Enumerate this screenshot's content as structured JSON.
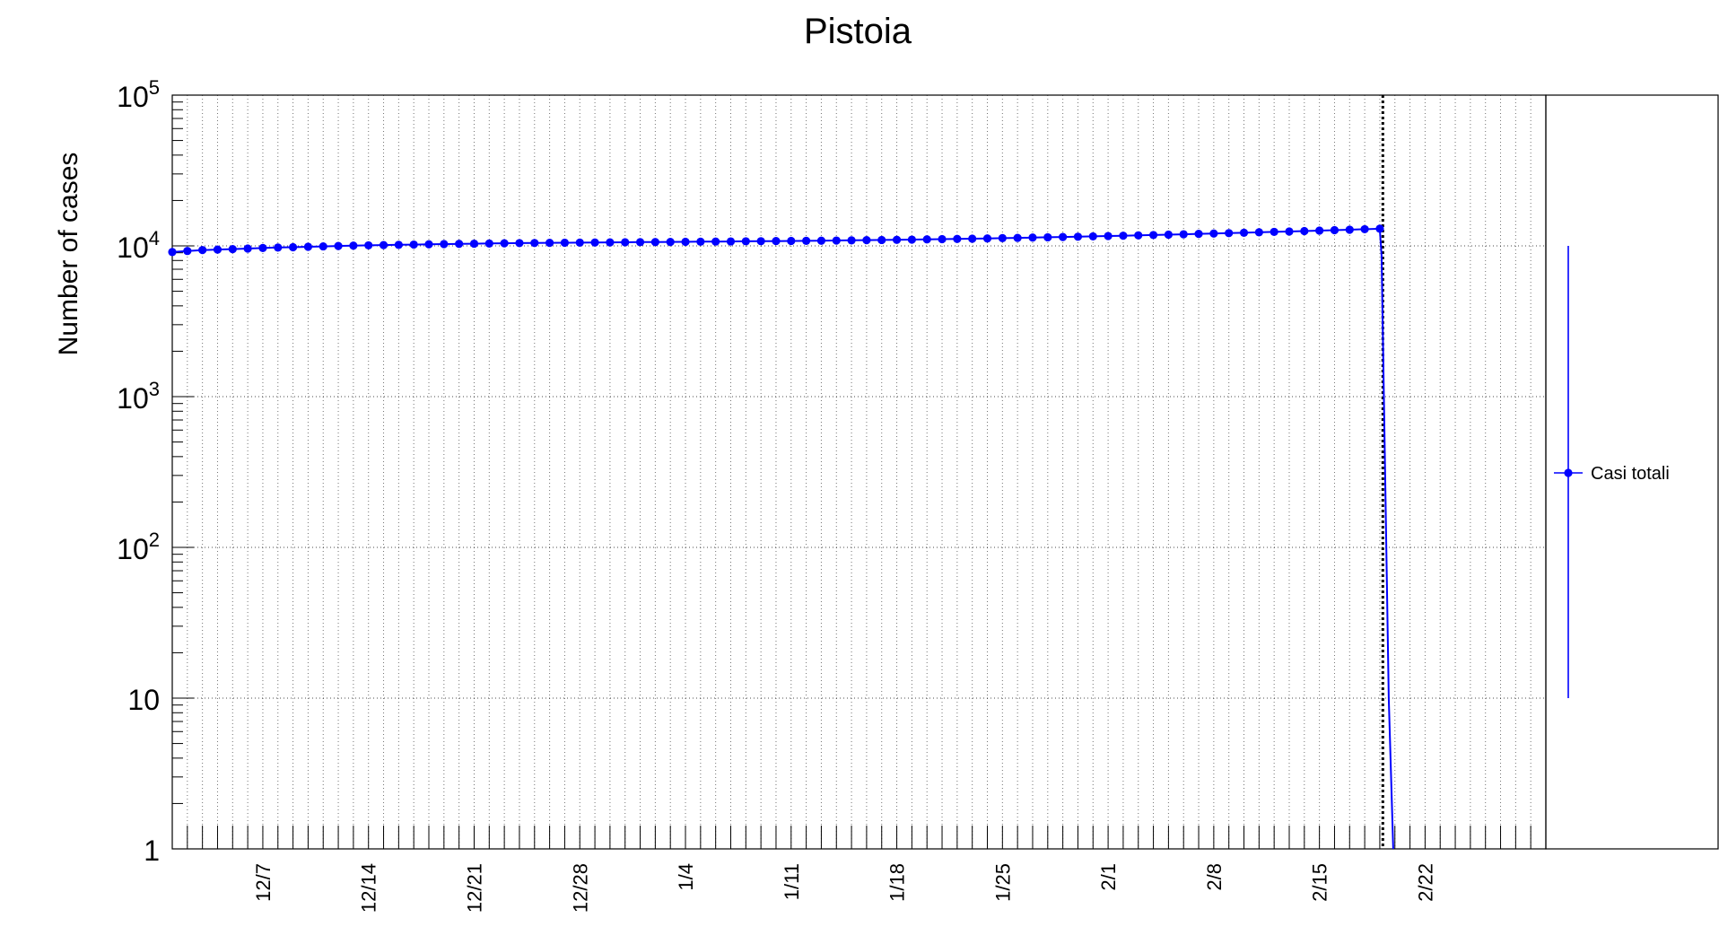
{
  "chart_data": {
    "type": "line",
    "title": "Pistoia",
    "xlabel": "",
    "ylabel": "Number of cases",
    "y_scale": "log",
    "ylim": [
      1,
      100000
    ],
    "xlim": [
      "2020-12-01",
      "2021-03-02"
    ],
    "grid": true,
    "legend_position": "right",
    "x_tick_labels": [
      "12/7",
      "12/14",
      "12/21",
      "12/28",
      "1/4",
      "1/11",
      "1/18",
      "1/25",
      "2/1",
      "2/8",
      "2/15",
      "2/22"
    ],
    "y_tick_labels": [
      {
        "value": 1,
        "base": "1",
        "exp": ""
      },
      {
        "value": 10,
        "base": "10",
        "exp": ""
      },
      {
        "value": 100,
        "base": "10",
        "exp": "2"
      },
      {
        "value": 1000,
        "base": "10",
        "exp": "3"
      },
      {
        "value": 10000,
        "base": "10",
        "exp": "4"
      },
      {
        "value": 100000,
        "base": "10",
        "exp": "5"
      }
    ],
    "vertical_marker": "2021-02-19",
    "series": [
      {
        "name": "Casi totali",
        "color": "#0000ff",
        "points": [
          [
            "2020-12-01",
            9100
          ],
          [
            "2020-12-02",
            9250
          ],
          [
            "2020-12-03",
            9380
          ],
          [
            "2020-12-04",
            9450
          ],
          [
            "2020-12-05",
            9520
          ],
          [
            "2020-12-06",
            9600
          ],
          [
            "2020-12-07",
            9680
          ],
          [
            "2020-12-08",
            9750
          ],
          [
            "2020-12-09",
            9800
          ],
          [
            "2020-12-10",
            9860
          ],
          [
            "2020-12-11",
            9920
          ],
          [
            "2020-12-12",
            9980
          ],
          [
            "2020-12-13",
            10030
          ],
          [
            "2020-12-14",
            10080
          ],
          [
            "2020-12-15",
            10120
          ],
          [
            "2020-12-16",
            10160
          ],
          [
            "2020-12-17",
            10200
          ],
          [
            "2020-12-18",
            10240
          ],
          [
            "2020-12-19",
            10280
          ],
          [
            "2020-12-20",
            10310
          ],
          [
            "2020-12-21",
            10340
          ],
          [
            "2020-12-22",
            10370
          ],
          [
            "2020-12-23",
            10400
          ],
          [
            "2020-12-24",
            10430
          ],
          [
            "2020-12-25",
            10450
          ],
          [
            "2020-12-26",
            10470
          ],
          [
            "2020-12-27",
            10490
          ],
          [
            "2020-12-28",
            10510
          ],
          [
            "2020-12-29",
            10530
          ],
          [
            "2020-12-30",
            10550
          ],
          [
            "2020-12-31",
            10570
          ],
          [
            "2021-01-01",
            10590
          ],
          [
            "2021-01-02",
            10600
          ],
          [
            "2021-01-03",
            10620
          ],
          [
            "2021-01-04",
            10640
          ],
          [
            "2021-01-05",
            10660
          ],
          [
            "2021-01-06",
            10680
          ],
          [
            "2021-01-07",
            10700
          ],
          [
            "2021-01-08",
            10720
          ],
          [
            "2021-01-09",
            10740
          ],
          [
            "2021-01-10",
            10760
          ],
          [
            "2021-01-11",
            10780
          ],
          [
            "2021-01-12",
            10800
          ],
          [
            "2021-01-13",
            10820
          ],
          [
            "2021-01-14",
            10850
          ],
          [
            "2021-01-15",
            10880
          ],
          [
            "2021-01-16",
            10910
          ],
          [
            "2021-01-17",
            10940
          ],
          [
            "2021-01-18",
            10970
          ],
          [
            "2021-01-19",
            11000
          ],
          [
            "2021-01-20",
            11040
          ],
          [
            "2021-01-21",
            11080
          ],
          [
            "2021-01-22",
            11120
          ],
          [
            "2021-01-23",
            11160
          ],
          [
            "2021-01-24",
            11200
          ],
          [
            "2021-01-25",
            11250
          ],
          [
            "2021-01-26",
            11300
          ],
          [
            "2021-01-27",
            11350
          ],
          [
            "2021-01-28",
            11400
          ],
          [
            "2021-01-29",
            11450
          ],
          [
            "2021-01-30",
            11500
          ],
          [
            "2021-01-31",
            11560
          ],
          [
            "2021-02-01",
            11620
          ],
          [
            "2021-02-02",
            11680
          ],
          [
            "2021-02-03",
            11740
          ],
          [
            "2021-02-04",
            11800
          ],
          [
            "2021-02-05",
            11870
          ],
          [
            "2021-02-06",
            11940
          ],
          [
            "2021-02-07",
            12010
          ],
          [
            "2021-02-08",
            12080
          ],
          [
            "2021-02-09",
            12150
          ],
          [
            "2021-02-10",
            12220
          ],
          [
            "2021-02-11",
            12300
          ],
          [
            "2021-02-12",
            12380
          ],
          [
            "2021-02-13",
            12460
          ],
          [
            "2021-02-14",
            12540
          ],
          [
            "2021-02-15",
            12620
          ],
          [
            "2021-02-16",
            12710
          ],
          [
            "2021-02-17",
            12800
          ],
          [
            "2021-02-18",
            12900
          ],
          [
            "2021-02-19",
            13000
          ]
        ]
      }
    ]
  }
}
